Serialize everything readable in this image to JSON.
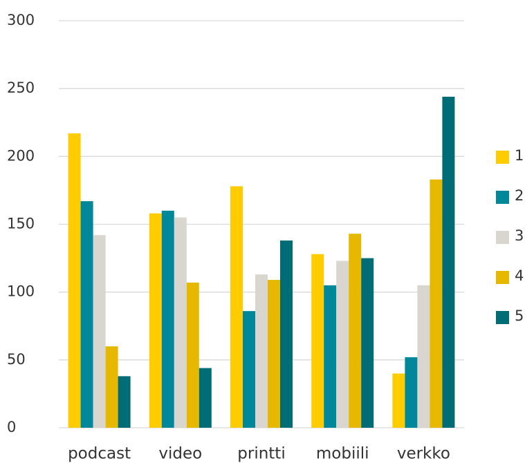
{
  "chart_data": {
    "type": "bar",
    "categories": [
      "podcast",
      "video",
      "printti",
      "mobiili",
      "verkko"
    ],
    "series": [
      {
        "name": "1",
        "values": [
          217,
          158,
          178,
          128,
          40
        ],
        "color": "#FFCC00"
      },
      {
        "name": "2",
        "values": [
          167,
          160,
          86,
          105,
          52
        ],
        "color": "#00879A"
      },
      {
        "name": "3",
        "values": [
          142,
          155,
          113,
          123,
          105
        ],
        "color": "#D9D6CF"
      },
      {
        "name": "4",
        "values": [
          60,
          107,
          109,
          143,
          183
        ],
        "color": "#E6B800"
      },
      {
        "name": "5",
        "values": [
          38,
          44,
          138,
          125,
          244
        ],
        "color": "#006C75"
      }
    ],
    "y_ticks": [
      "0",
      "50",
      "100",
      "150",
      "200",
      "250",
      "300"
    ],
    "ylim": [
      0,
      300
    ],
    "grid": true,
    "legend": "right"
  }
}
